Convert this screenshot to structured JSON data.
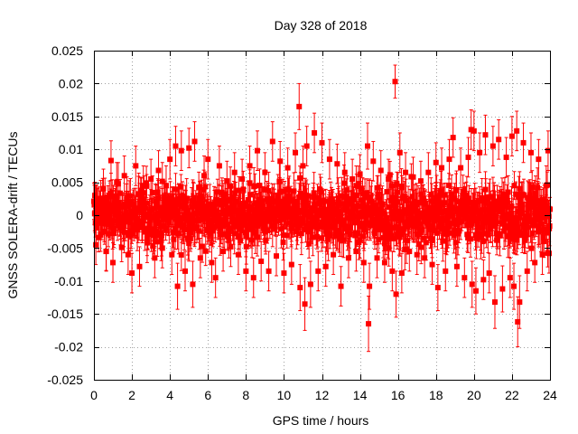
{
  "chart_data": {
    "type": "scatter",
    "title": "Day 328 of 2018",
    "xlabel": "GPS time / hours",
    "ylabel": "GNSS SOLERA-drift / TECUs",
    "xlim": [
      0,
      24
    ],
    "ylim": [
      -0.025,
      0.025
    ],
    "x_ticks": [
      "0",
      "2",
      "4",
      "6",
      "8",
      "10",
      "12",
      "14",
      "16",
      "18",
      "20",
      "22",
      "24"
    ],
    "y_ticks": [
      "-0.025",
      "-0.02",
      "-0.015",
      "-0.01",
      "-0.005",
      "0",
      "0.005",
      "0.01",
      "0.015",
      "0.02",
      "0.025"
    ],
    "grid": true,
    "series_color": "#ff0000",
    "marker": "square-with-errorbars",
    "points": [
      {
        "x": 0.05,
        "y": 0.003,
        "err": 0.002
      },
      {
        "x": 0.1,
        "y": -0.0045,
        "err": 0.003
      },
      {
        "x": 0.2,
        "y": 0.0015,
        "err": 0.0025
      },
      {
        "x": 0.35,
        "y": -0.003,
        "err": 0.0025
      },
      {
        "x": 0.5,
        "y": 0.004,
        "err": 0.003
      },
      {
        "x": 0.65,
        "y": -0.0055,
        "err": 0.003
      },
      {
        "x": 0.8,
        "y": 0.0005,
        "err": 0.0025
      },
      {
        "x": 0.9,
        "y": 0.0083,
        "err": 0.003
      },
      {
        "x": 1.0,
        "y": -0.0072,
        "err": 0.003
      },
      {
        "x": 1.2,
        "y": 0.005,
        "err": 0.003
      },
      {
        "x": 1.4,
        "y": -0.002,
        "err": 0.0025
      },
      {
        "x": 1.6,
        "y": 0.006,
        "err": 0.003
      },
      {
        "x": 1.8,
        "y": -0.006,
        "err": 0.003
      },
      {
        "x": 2.0,
        "y": -0.0088,
        "err": 0.003
      },
      {
        "x": 2.2,
        "y": 0.0075,
        "err": 0.003
      },
      {
        "x": 2.4,
        "y": -0.0078,
        "err": 0.003
      },
      {
        "x": 2.6,
        "y": 0.0045,
        "err": 0.003
      },
      {
        "x": 2.8,
        "y": -0.0042,
        "err": 0.003
      },
      {
        "x": 3.0,
        "y": 0.0055,
        "err": 0.003
      },
      {
        "x": 3.2,
        "y": -0.0065,
        "err": 0.003
      },
      {
        "x": 3.4,
        "y": 0.0068,
        "err": 0.003
      },
      {
        "x": 3.6,
        "y": -0.005,
        "err": 0.003
      },
      {
        "x": 3.8,
        "y": 0.0045,
        "err": 0.003
      },
      {
        "x": 4.0,
        "y": 0.0085,
        "err": 0.003
      },
      {
        "x": 4.1,
        "y": -0.006,
        "err": 0.003
      },
      {
        "x": 4.3,
        "y": 0.0105,
        "err": 0.003
      },
      {
        "x": 4.4,
        "y": -0.0108,
        "err": 0.0035
      },
      {
        "x": 4.6,
        "y": 0.0098,
        "err": 0.003
      },
      {
        "x": 4.8,
        "y": -0.0085,
        "err": 0.003
      },
      {
        "x": 5.0,
        "y": 0.0102,
        "err": 0.003
      },
      {
        "x": 5.2,
        "y": -0.0105,
        "err": 0.0035
      },
      {
        "x": 5.3,
        "y": 0.0112,
        "err": 0.003
      },
      {
        "x": 5.6,
        "y": -0.0065,
        "err": 0.003
      },
      {
        "x": 5.8,
        "y": 0.006,
        "err": 0.003
      },
      {
        "x": 6.0,
        "y": 0.0085,
        "err": 0.003
      },
      {
        "x": 6.2,
        "y": -0.0072,
        "err": 0.003
      },
      {
        "x": 6.4,
        "y": -0.0095,
        "err": 0.003
      },
      {
        "x": 6.6,
        "y": 0.0075,
        "err": 0.003
      },
      {
        "x": 6.8,
        "y": -0.0055,
        "err": 0.003
      },
      {
        "x": 7.0,
        "y": 0.0052,
        "err": 0.003
      },
      {
        "x": 7.2,
        "y": -0.0048,
        "err": 0.003
      },
      {
        "x": 7.4,
        "y": 0.0065,
        "err": 0.003
      },
      {
        "x": 7.6,
        "y": -0.006,
        "err": 0.003
      },
      {
        "x": 7.8,
        "y": 0.0055,
        "err": 0.003
      },
      {
        "x": 8.0,
        "y": -0.0085,
        "err": 0.003
      },
      {
        "x": 8.2,
        "y": 0.0075,
        "err": 0.003
      },
      {
        "x": 8.4,
        "y": -0.0095,
        "err": 0.003
      },
      {
        "x": 8.6,
        "y": 0.0098,
        "err": 0.003
      },
      {
        "x": 8.8,
        "y": -0.007,
        "err": 0.003
      },
      {
        "x": 9.0,
        "y": 0.0065,
        "err": 0.003
      },
      {
        "x": 9.2,
        "y": -0.0085,
        "err": 0.003
      },
      {
        "x": 9.4,
        "y": 0.0112,
        "err": 0.003
      },
      {
        "x": 9.6,
        "y": -0.0062,
        "err": 0.003
      },
      {
        "x": 9.8,
        "y": 0.0082,
        "err": 0.003
      },
      {
        "x": 10.0,
        "y": -0.0088,
        "err": 0.003
      },
      {
        "x": 10.2,
        "y": 0.0072,
        "err": 0.003
      },
      {
        "x": 10.4,
        "y": -0.0075,
        "err": 0.003
      },
      {
        "x": 10.6,
        "y": 0.0095,
        "err": 0.003
      },
      {
        "x": 10.8,
        "y": 0.0165,
        "err": 0.0035
      },
      {
        "x": 10.85,
        "y": -0.011,
        "err": 0.0035
      },
      {
        "x": 11.0,
        "y": 0.0075,
        "err": 0.003
      },
      {
        "x": 11.1,
        "y": -0.0135,
        "err": 0.004
      },
      {
        "x": 11.2,
        "y": 0.0105,
        "err": 0.003
      },
      {
        "x": 11.4,
        "y": -0.0105,
        "err": 0.0035
      },
      {
        "x": 11.6,
        "y": 0.0125,
        "err": 0.003
      },
      {
        "x": 11.8,
        "y": -0.0085,
        "err": 0.003
      },
      {
        "x": 12.0,
        "y": 0.011,
        "err": 0.003
      },
      {
        "x": 12.2,
        "y": -0.0078,
        "err": 0.003
      },
      {
        "x": 12.4,
        "y": 0.0085,
        "err": 0.003
      },
      {
        "x": 12.6,
        "y": -0.006,
        "err": 0.003
      },
      {
        "x": 12.8,
        "y": 0.0078,
        "err": 0.003
      },
      {
        "x": 13.0,
        "y": -0.0108,
        "err": 0.003
      },
      {
        "x": 13.2,
        "y": 0.0065,
        "err": 0.003
      },
      {
        "x": 13.4,
        "y": -0.0065,
        "err": 0.003
      },
      {
        "x": 13.6,
        "y": 0.0055,
        "err": 0.003
      },
      {
        "x": 13.8,
        "y": -0.0055,
        "err": 0.003
      },
      {
        "x": 14.0,
        "y": 0.0062,
        "err": 0.003
      },
      {
        "x": 14.2,
        "y": -0.0072,
        "err": 0.003
      },
      {
        "x": 14.4,
        "y": 0.0105,
        "err": 0.0035
      },
      {
        "x": 14.45,
        "y": -0.0165,
        "err": 0.0042
      },
      {
        "x": 14.5,
        "y": -0.0108,
        "err": 0.0035
      },
      {
        "x": 14.7,
        "y": 0.0082,
        "err": 0.003
      },
      {
        "x": 14.9,
        "y": -0.0065,
        "err": 0.003
      },
      {
        "x": 15.1,
        "y": 0.0068,
        "err": 0.003
      },
      {
        "x": 15.3,
        "y": -0.0072,
        "err": 0.003
      },
      {
        "x": 15.5,
        "y": 0.0055,
        "err": 0.003
      },
      {
        "x": 15.7,
        "y": -0.0085,
        "err": 0.003
      },
      {
        "x": 15.85,
        "y": 0.0203,
        "err": 0.0025
      },
      {
        "x": 15.9,
        "y": -0.012,
        "err": 0.0035
      },
      {
        "x": 16.1,
        "y": 0.0095,
        "err": 0.003
      },
      {
        "x": 16.2,
        "y": -0.0088,
        "err": 0.003
      },
      {
        "x": 16.4,
        "y": 0.0065,
        "err": 0.003
      },
      {
        "x": 16.6,
        "y": -0.0055,
        "err": 0.003
      },
      {
        "x": 16.8,
        "y": 0.0058,
        "err": 0.003
      },
      {
        "x": 17.0,
        "y": -0.006,
        "err": 0.003
      },
      {
        "x": 17.2,
        "y": 0.0052,
        "err": 0.003
      },
      {
        "x": 17.4,
        "y": -0.0065,
        "err": 0.003
      },
      {
        "x": 17.6,
        "y": 0.0065,
        "err": 0.003
      },
      {
        "x": 17.8,
        "y": -0.0075,
        "err": 0.003
      },
      {
        "x": 18.0,
        "y": 0.008,
        "err": 0.003
      },
      {
        "x": 18.1,
        "y": -0.011,
        "err": 0.0035
      },
      {
        "x": 18.3,
        "y": 0.0072,
        "err": 0.003
      },
      {
        "x": 18.5,
        "y": -0.0085,
        "err": 0.003
      },
      {
        "x": 18.7,
        "y": 0.0085,
        "err": 0.003
      },
      {
        "x": 18.9,
        "y": 0.0118,
        "err": 0.003
      },
      {
        "x": 19.1,
        "y": -0.0078,
        "err": 0.003
      },
      {
        "x": 19.3,
        "y": 0.0072,
        "err": 0.003
      },
      {
        "x": 19.5,
        "y": -0.0095,
        "err": 0.003
      },
      {
        "x": 19.7,
        "y": 0.0088,
        "err": 0.003
      },
      {
        "x": 19.85,
        "y": 0.013,
        "err": 0.003
      },
      {
        "x": 19.9,
        "y": -0.0105,
        "err": 0.0035
      },
      {
        "x": 20.0,
        "y": 0.0128,
        "err": 0.003
      },
      {
        "x": 20.1,
        "y": -0.0115,
        "err": 0.0035
      },
      {
        "x": 20.3,
        "y": 0.0095,
        "err": 0.003
      },
      {
        "x": 20.5,
        "y": -0.0098,
        "err": 0.003
      },
      {
        "x": 20.6,
        "y": 0.0122,
        "err": 0.003
      },
      {
        "x": 20.8,
        "y": -0.0088,
        "err": 0.003
      },
      {
        "x": 21.0,
        "y": 0.0105,
        "err": 0.003
      },
      {
        "x": 21.1,
        "y": -0.0132,
        "err": 0.004
      },
      {
        "x": 21.3,
        "y": 0.0115,
        "err": 0.003
      },
      {
        "x": 21.5,
        "y": -0.0112,
        "err": 0.0035
      },
      {
        "x": 21.7,
        "y": 0.0088,
        "err": 0.003
      },
      {
        "x": 21.9,
        "y": -0.0095,
        "err": 0.003
      },
      {
        "x": 22.0,
        "y": 0.012,
        "err": 0.003
      },
      {
        "x": 22.1,
        "y": -0.0108,
        "err": 0.0035
      },
      {
        "x": 22.25,
        "y": 0.0128,
        "err": 0.003
      },
      {
        "x": 22.3,
        "y": -0.0162,
        "err": 0.0038
      },
      {
        "x": 22.4,
        "y": -0.0132,
        "err": 0.004
      },
      {
        "x": 22.6,
        "y": 0.011,
        "err": 0.003
      },
      {
        "x": 22.8,
        "y": -0.0085,
        "err": 0.003
      },
      {
        "x": 23.0,
        "y": 0.0095,
        "err": 0.003
      },
      {
        "x": 23.2,
        "y": -0.0072,
        "err": 0.003
      },
      {
        "x": 23.4,
        "y": 0.0085,
        "err": 0.003
      },
      {
        "x": 23.6,
        "y": -0.006,
        "err": 0.003
      },
      {
        "x": 23.8,
        "y": 0.0045,
        "err": 0.003
      },
      {
        "x": 23.9,
        "y": 0.0098,
        "err": 0.003
      },
      {
        "x": 23.95,
        "y": -0.0058,
        "err": 0.003
      }
    ],
    "noise_band": {
      "x_range": [
        0,
        24
      ],
      "step_hours": 0.02,
      "amplitude": 0.0045,
      "err": 0.0025
    }
  }
}
